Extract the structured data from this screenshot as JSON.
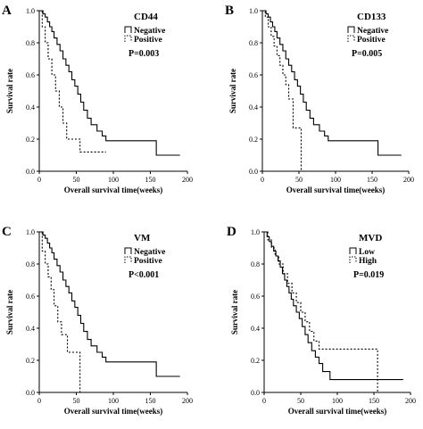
{
  "chart_data": [
    {
      "type": "line",
      "step": true,
      "panel": "A",
      "marker": "CD44",
      "pvalue": "P=0.003",
      "xlabel": "Overall survival time(weeks)",
      "ylabel": "Survival rate",
      "xlim": [
        0,
        200
      ],
      "ylim": [
        0,
        1.0
      ],
      "xticks": [
        "0",
        "50",
        "100",
        "150",
        "200"
      ],
      "yticks": [
        "0.0",
        "0.2",
        "0.4",
        "0.6",
        "0.8",
        "1.0"
      ],
      "legend_position": "top-right",
      "series": [
        {
          "name": "Negative",
          "dash": "solid",
          "x": [
            0,
            5,
            8,
            11,
            14,
            17,
            20,
            24,
            28,
            32,
            36,
            40,
            44,
            48,
            52,
            56,
            60,
            65,
            70,
            78,
            85,
            90,
            96,
            158,
            190
          ],
          "y": [
            1.0,
            0.98,
            0.96,
            0.93,
            0.9,
            0.87,
            0.83,
            0.79,
            0.75,
            0.7,
            0.66,
            0.62,
            0.57,
            0.53,
            0.48,
            0.43,
            0.38,
            0.33,
            0.29,
            0.25,
            0.22,
            0.19,
            0.19,
            0.1,
            0.1
          ]
        },
        {
          "name": "Positive",
          "dash": "dotted",
          "x": [
            0,
            4,
            8,
            12,
            17,
            22,
            27,
            32,
            37,
            45,
            55,
            90
          ],
          "y": [
            1.0,
            0.9,
            0.8,
            0.7,
            0.6,
            0.5,
            0.4,
            0.3,
            0.2,
            0.2,
            0.12,
            0.12
          ]
        }
      ]
    },
    {
      "type": "line",
      "step": true,
      "panel": "B",
      "marker": "CD133",
      "pvalue": "P=0.005",
      "xlabel": "Overall survival time(weeks)",
      "ylabel": "Survival rate",
      "xlim": [
        0,
        200
      ],
      "ylim": [
        0,
        1.0
      ],
      "xticks": [
        "0",
        "50",
        "100",
        "150",
        "200"
      ],
      "yticks": [
        "0.0",
        "0.2",
        "0.4",
        "0.6",
        "0.8",
        "1.0"
      ],
      "legend_position": "top-right",
      "series": [
        {
          "name": "Negative",
          "dash": "solid",
          "x": [
            0,
            5,
            8,
            11,
            14,
            17,
            20,
            24,
            28,
            32,
            36,
            40,
            44,
            48,
            52,
            56,
            60,
            65,
            70,
            78,
            85,
            90,
            96,
            158,
            190
          ],
          "y": [
            1.0,
            0.98,
            0.96,
            0.93,
            0.9,
            0.87,
            0.83,
            0.79,
            0.75,
            0.7,
            0.66,
            0.62,
            0.57,
            0.53,
            0.48,
            0.43,
            0.38,
            0.33,
            0.29,
            0.25,
            0.22,
            0.19,
            0.19,
            0.1,
            0.1
          ]
        },
        {
          "name": "Positive",
          "dash": "dotted",
          "x": [
            0,
            4,
            8,
            12,
            16,
            20,
            24,
            28,
            32,
            36,
            42,
            48,
            53
          ],
          "y": [
            1.0,
            0.96,
            0.9,
            0.84,
            0.78,
            0.72,
            0.66,
            0.6,
            0.54,
            0.45,
            0.27,
            0.27,
            0.0
          ]
        }
      ]
    },
    {
      "type": "line",
      "step": true,
      "panel": "C",
      "marker": "VM",
      "pvalue": "P<0.001",
      "xlabel": "Overall survival time(weeks)",
      "ylabel": "Survival rate",
      "xlim": [
        0,
        200
      ],
      "ylim": [
        0,
        1.0
      ],
      "xticks": [
        "0",
        "50",
        "100",
        "150",
        "200"
      ],
      "yticks": [
        "0.0",
        "0.2",
        "0.4",
        "0.6",
        "0.8",
        "1.0"
      ],
      "legend_position": "top-right",
      "series": [
        {
          "name": "Negative",
          "dash": "solid",
          "x": [
            0,
            5,
            8,
            11,
            14,
            17,
            20,
            24,
            28,
            32,
            36,
            40,
            44,
            48,
            52,
            56,
            60,
            65,
            70,
            78,
            85,
            90,
            96,
            158,
            190
          ],
          "y": [
            1.0,
            0.98,
            0.96,
            0.93,
            0.9,
            0.87,
            0.83,
            0.79,
            0.75,
            0.7,
            0.66,
            0.62,
            0.57,
            0.53,
            0.48,
            0.43,
            0.38,
            0.33,
            0.29,
            0.25,
            0.22,
            0.19,
            0.19,
            0.1,
            0.1
          ]
        },
        {
          "name": "Positive",
          "dash": "dotted",
          "x": [
            0,
            4,
            8,
            12,
            16,
            20,
            25,
            30,
            38,
            48,
            55
          ],
          "y": [
            1.0,
            0.88,
            0.8,
            0.72,
            0.64,
            0.54,
            0.44,
            0.36,
            0.25,
            0.25,
            0.0
          ]
        }
      ]
    },
    {
      "type": "line",
      "step": true,
      "panel": "D",
      "marker": "MVD",
      "pvalue": "P=0.019",
      "xlabel": "Overall survival time(weeks)",
      "ylabel": "Survival rate",
      "xlim": [
        0,
        200
      ],
      "ylim": [
        0,
        1.0
      ],
      "xticks": [
        "0",
        "50",
        "100",
        "150",
        "200"
      ],
      "yticks": [
        "0.0",
        "0.2",
        "0.4",
        "0.6",
        "0.8",
        "1.0"
      ],
      "legend_position": "top-right",
      "series": [
        {
          "name": "Low",
          "dash": "solid",
          "x": [
            0,
            4,
            7,
            10,
            13,
            16,
            19,
            22,
            25,
            28,
            31,
            34,
            37,
            40,
            44,
            48,
            52,
            56,
            60,
            65,
            70,
            75,
            80,
            90,
            190
          ],
          "y": [
            1.0,
            0.97,
            0.94,
            0.91,
            0.88,
            0.85,
            0.82,
            0.78,
            0.74,
            0.7,
            0.66,
            0.62,
            0.58,
            0.54,
            0.5,
            0.46,
            0.41,
            0.36,
            0.31,
            0.26,
            0.22,
            0.18,
            0.13,
            0.08,
            0.08
          ]
        },
        {
          "name": "High",
          "dash": "dotted",
          "x": [
            0,
            5,
            10,
            15,
            20,
            26,
            32,
            38,
            44,
            50,
            56,
            62,
            68,
            75,
            155
          ],
          "y": [
            1.0,
            0.95,
            0.9,
            0.85,
            0.8,
            0.74,
            0.68,
            0.62,
            0.56,
            0.5,
            0.44,
            0.38,
            0.32,
            0.27,
            0.0
          ]
        }
      ]
    }
  ]
}
